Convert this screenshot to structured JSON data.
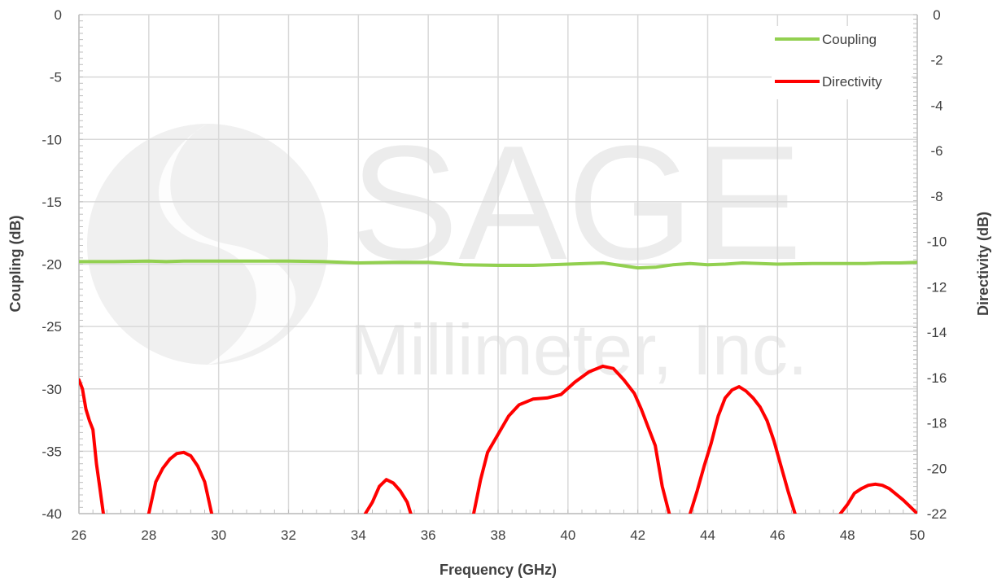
{
  "chart_data": {
    "type": "line",
    "xlabel": "Frequency (GHz)",
    "ylabel": "Coupling (dB)",
    "y2label": "Directivity (dB)",
    "xlim": [
      26,
      50
    ],
    "ylim": [
      -40,
      0
    ],
    "y2lim": [
      -22,
      0
    ],
    "xticks": [
      26,
      28,
      30,
      32,
      34,
      36,
      38,
      40,
      42,
      44,
      46,
      48,
      50
    ],
    "yticks": [
      0,
      -5,
      -10,
      -15,
      -20,
      -25,
      -30,
      -35,
      -40
    ],
    "y2ticks": [
      0,
      -2,
      -4,
      -6,
      -8,
      -10,
      -12,
      -14,
      -16,
      -18,
      -20,
      -22
    ],
    "grid": true,
    "legend_position": "top-right",
    "watermark": {
      "line1": "SAGE",
      "line2": "Millimeter, Inc."
    },
    "series": [
      {
        "name": "Coupling",
        "axis": "left",
        "color": "#92d050",
        "x": [
          26,
          27,
          28,
          28.5,
          29,
          29.5,
          30,
          31,
          32,
          33,
          34,
          35,
          36,
          37,
          38,
          39,
          40,
          40.5,
          41,
          41.5,
          42,
          42.5,
          43,
          43.5,
          44,
          44.5,
          45,
          46,
          47,
          48,
          48.5,
          49,
          49.5,
          50
        ],
        "y": [
          -19.8,
          -19.8,
          -19.75,
          -19.8,
          -19.75,
          -19.75,
          -19.75,
          -19.75,
          -19.75,
          -19.8,
          -19.9,
          -19.85,
          -19.85,
          -20.05,
          -20.1,
          -20.1,
          -20.0,
          -19.95,
          -19.9,
          -20.1,
          -20.3,
          -20.25,
          -20.05,
          -19.95,
          -20.05,
          -20.0,
          -19.9,
          -20.0,
          -19.95,
          -19.95,
          -19.95,
          -19.9,
          -19.9,
          -19.85
        ]
      },
      {
        "name": "Directivity",
        "axis": "right",
        "color": "#ff0000",
        "segments": [
          {
            "x": [
              26,
              26.1,
              26.2,
              26.3,
              26.4,
              26.5,
              26.6,
              26.7
            ],
            "y": [
              -16.1,
              -16.5,
              -17.4,
              -17.9,
              -18.3,
              -19.8,
              -20.9,
              -22
            ]
          },
          {
            "x": [
              28.0,
              28.2,
              28.4,
              28.6,
              28.8,
              29.0,
              29.2,
              29.4,
              29.6,
              29.8
            ],
            "y": [
              -22,
              -20.6,
              -20.0,
              -19.6,
              -19.35,
              -19.3,
              -19.45,
              -19.9,
              -20.6,
              -22
            ]
          },
          {
            "x": [
              34.2,
              34.4,
              34.6,
              34.8,
              35.0,
              35.2,
              35.4,
              35.5
            ],
            "y": [
              -22,
              -21.5,
              -20.8,
              -20.5,
              -20.65,
              -21.0,
              -21.5,
              -22
            ]
          },
          {
            "x": [
              37.3,
              37.5,
              37.7,
              38.0,
              38.3,
              38.6,
              39.0,
              39.4,
              39.8,
              40.2,
              40.6,
              41.0,
              41.3,
              41.6,
              41.9,
              42.1,
              42.3,
              42.5,
              42.7,
              42.9
            ],
            "y": [
              -22,
              -20.5,
              -19.3,
              -18.5,
              -17.7,
              -17.2,
              -16.95,
              -16.9,
              -16.75,
              -16.2,
              -15.75,
              -15.5,
              -15.6,
              -16.1,
              -16.7,
              -17.4,
              -18.2,
              -19.0,
              -20.8,
              -22
            ]
          },
          {
            "x": [
              43.5,
              43.7,
              43.9,
              44.1,
              44.3,
              44.5,
              44.7,
              44.9,
              45.1,
              45.3,
              45.5,
              45.7,
              45.9,
              46.1,
              46.3,
              46.5
            ],
            "y": [
              -22,
              -21.0,
              -19.9,
              -18.9,
              -17.7,
              -16.9,
              -16.55,
              -16.4,
              -16.6,
              -16.9,
              -17.3,
              -17.9,
              -18.8,
              -19.9,
              -21.0,
              -22
            ]
          },
          {
            "x": [
              47.8,
              48.0,
              48.2,
              48.4,
              48.6,
              48.8,
              49.0,
              49.2,
              49.4,
              49.6,
              49.8,
              50.0
            ],
            "y": [
              -22,
              -21.6,
              -21.1,
              -20.9,
              -20.75,
              -20.7,
              -20.75,
              -20.9,
              -21.15,
              -21.4,
              -21.7,
              -22
            ]
          }
        ]
      }
    ]
  }
}
